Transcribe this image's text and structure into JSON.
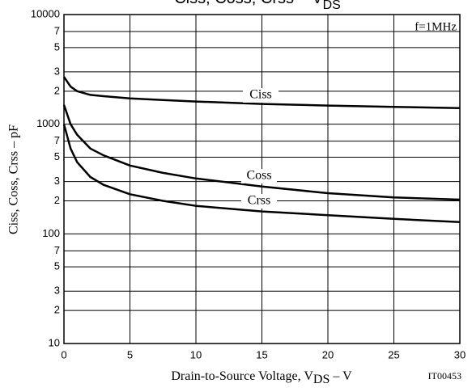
{
  "chart_data": {
    "type": "line",
    "title": [
      "Ciss,  Coss,  Crss  –  V",
      "DS"
    ],
    "x_label": [
      "Drain-to-Source Voltage,  V",
      "DS",
      "  –  V"
    ],
    "y_label": "Ciss,  Coss,  Crss  –  pF",
    "annotations": [
      "f=1MHz",
      "IT00453"
    ],
    "x": [
      0,
      0.5,
      1,
      2,
      3,
      5,
      7.5,
      10,
      15,
      20,
      25,
      30
    ],
    "series": [
      {
        "name": "Ciss",
        "color": "#000000",
        "values": [
          2700,
          2200,
          2000,
          1850,
          1800,
          1720,
          1660,
          1610,
          1530,
          1480,
          1440,
          1400
        ]
      },
      {
        "name": "Coss",
        "color": "#000000",
        "values": [
          1500,
          1000,
          800,
          600,
          520,
          420,
          360,
          320,
          270,
          235,
          215,
          205
        ]
      },
      {
        "name": "Crss",
        "color": "#000000",
        "values": [
          1000,
          600,
          450,
          330,
          280,
          230,
          200,
          180,
          160,
          148,
          137,
          128
        ]
      }
    ],
    "xlim": [
      0,
      30
    ],
    "xticks": [
      0,
      5,
      10,
      15,
      20,
      25,
      30
    ],
    "ylim": [
      10,
      10000
    ],
    "log_y": true,
    "yticks": [
      10,
      {
        "value": 20,
        "label": "2"
      },
      {
        "value": 30,
        "label": "3"
      },
      {
        "value": 50,
        "label": "5"
      },
      {
        "value": 70,
        "label": "7"
      },
      100,
      {
        "value": 200,
        "label": "2"
      },
      {
        "value": 300,
        "label": "3"
      },
      {
        "value": 500,
        "label": "5"
      },
      {
        "value": 700,
        "label": "7"
      },
      1000,
      {
        "value": 2000,
        "label": "2"
      },
      {
        "value": 3000,
        "label": "3"
      },
      {
        "value": 5000,
        "label": "5"
      },
      {
        "value": 7000,
        "label": "7"
      },
      10000
    ],
    "grid": true
  }
}
